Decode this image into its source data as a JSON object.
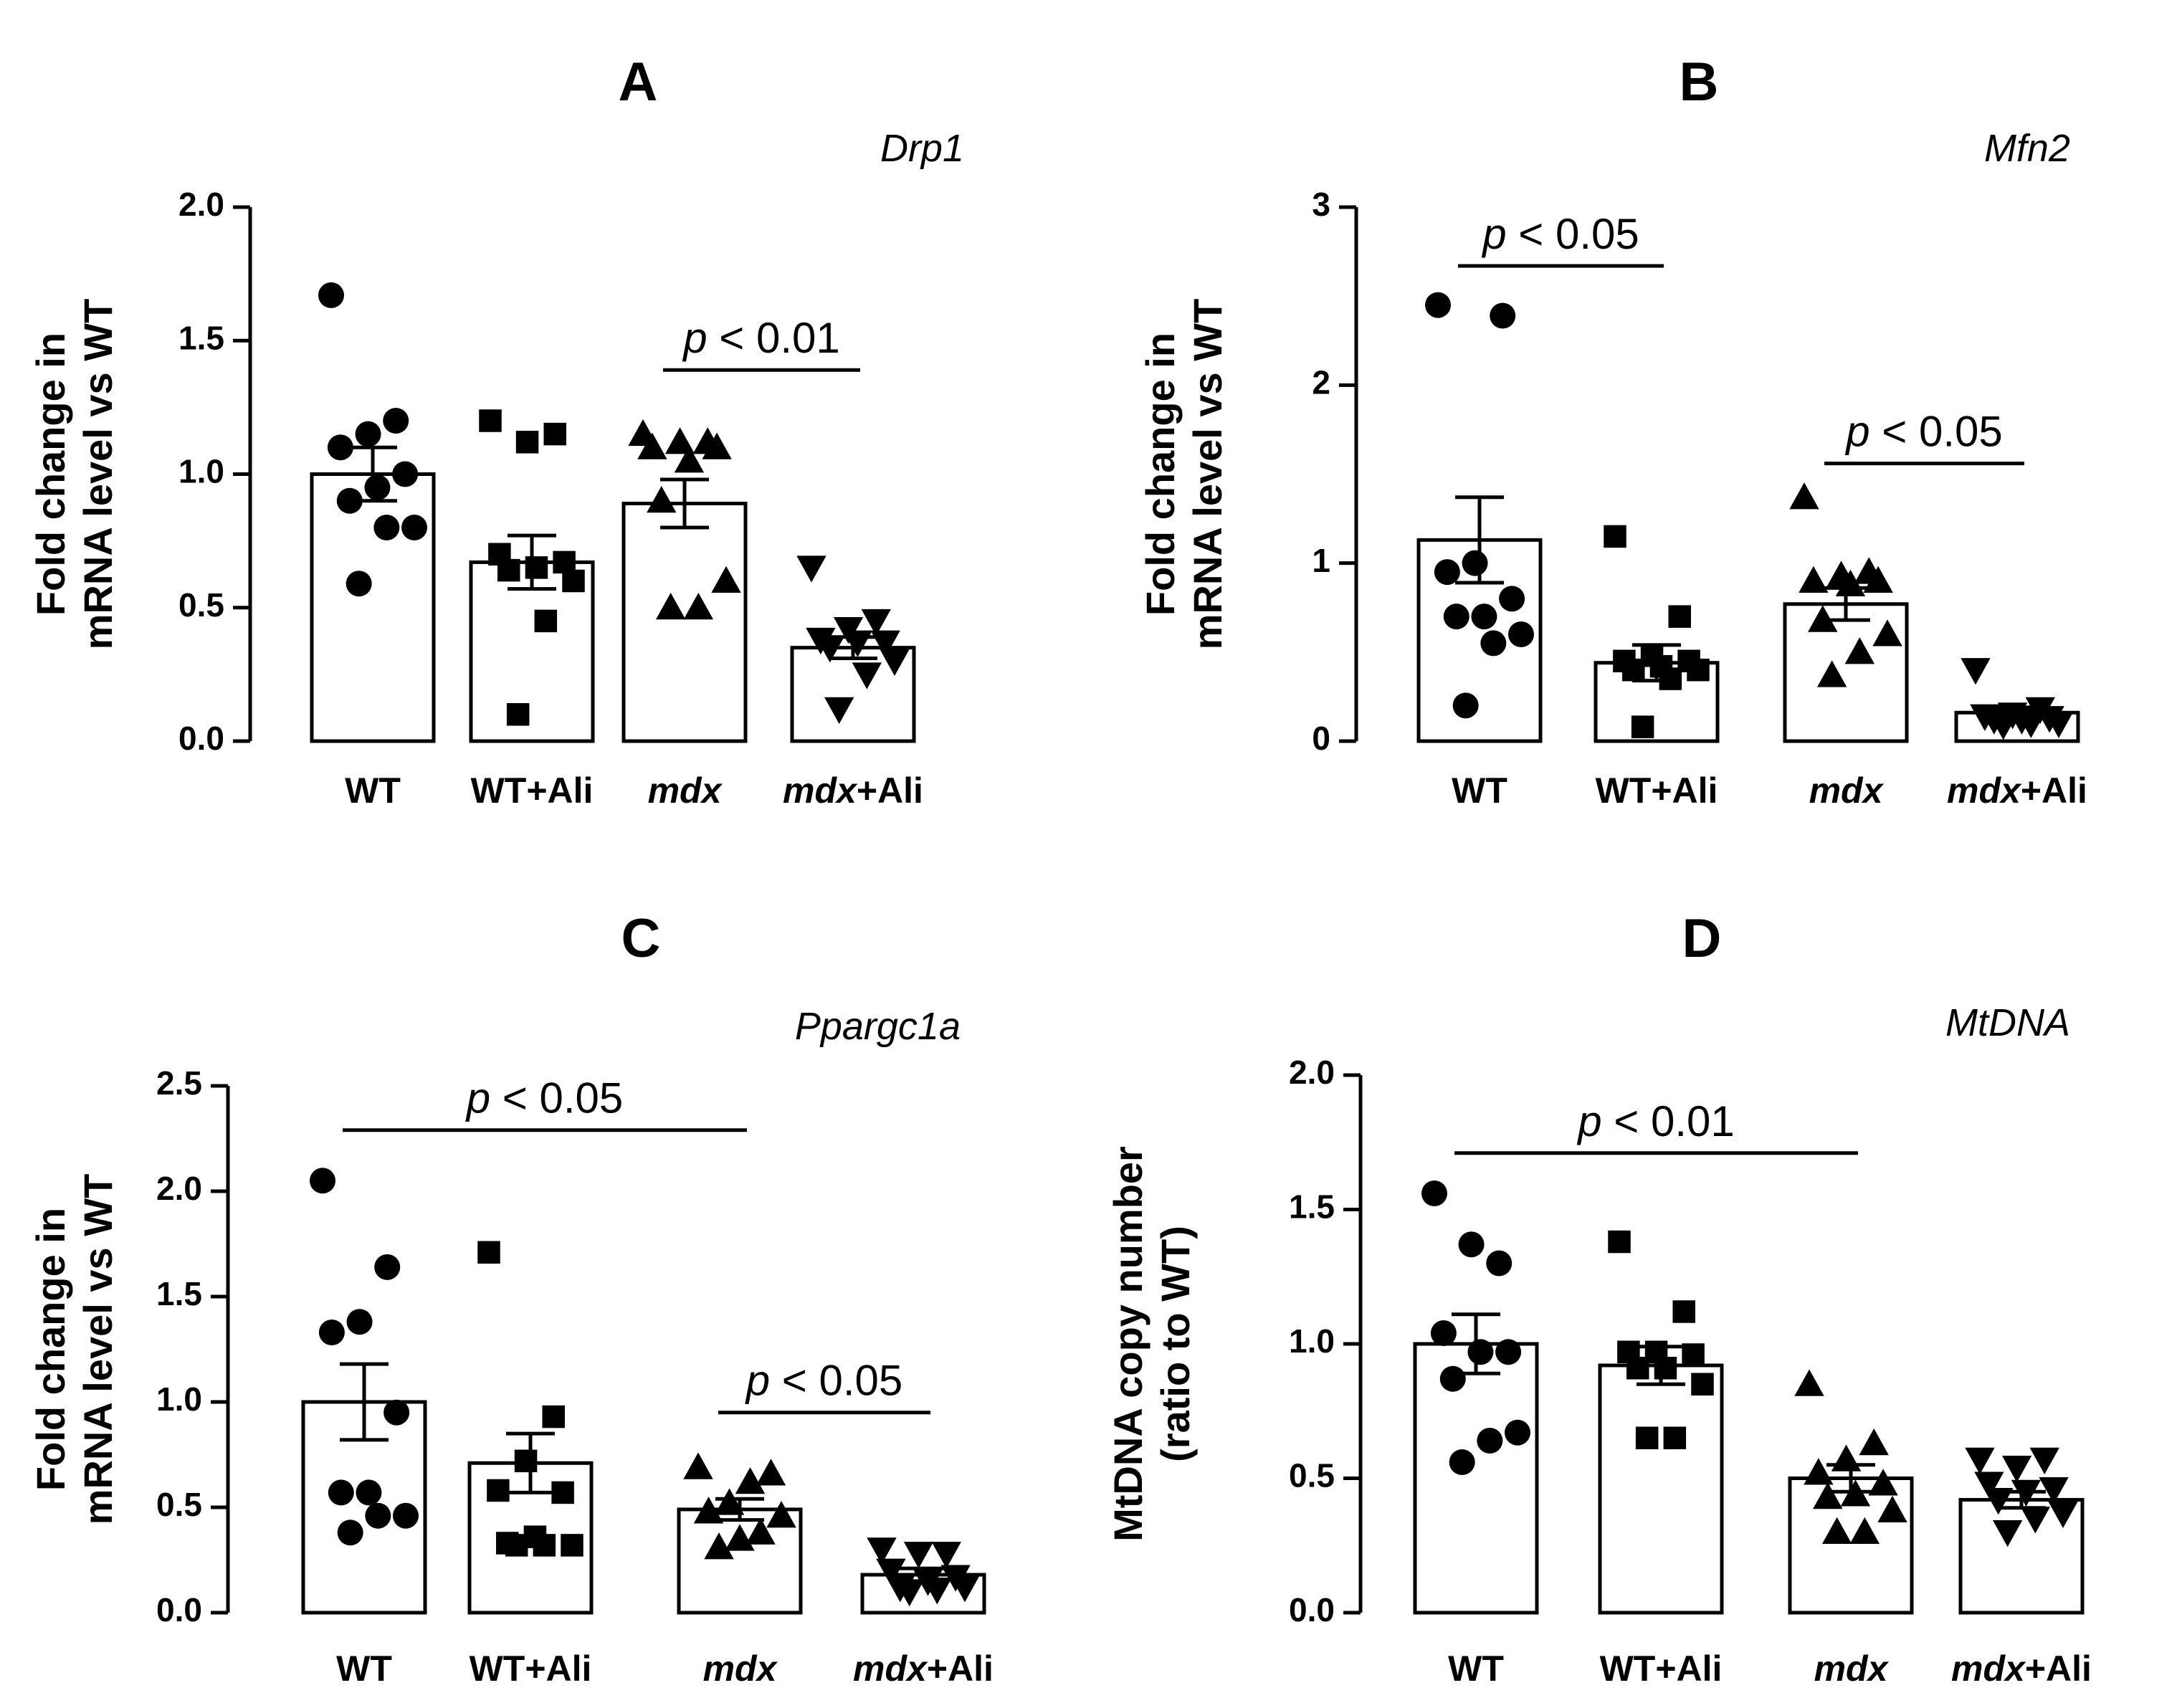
{
  "chart_data": [
    {
      "type": "bar",
      "panel": "A",
      "title": "Drp1",
      "ylabel_lines": [
        "Fold change in",
        "mRNA level vs WT"
      ],
      "ylim": [
        0,
        2.0
      ],
      "yticks": [
        "0.0",
        "0.5",
        "1.0",
        "1.5",
        "2.0"
      ],
      "ytick_values": [
        0,
        0.5,
        1.0,
        1.5,
        2.0
      ],
      "categories": [
        {
          "name": "WT",
          "italic_part": ""
        },
        {
          "name": "WT+Ali",
          "italic_part": ""
        },
        {
          "name": "+Ali",
          "italic_part": "mdx",
          "display": "mdx"
        },
        {
          "name": "+Ali",
          "italic_part": "mdx"
        }
      ],
      "category_labels": [
        "WT",
        "WT+Ali",
        "mdx",
        "mdx+Ali"
      ],
      "markers": [
        "circle",
        "square",
        "triangle-up",
        "triangle-down"
      ],
      "means": [
        1.0,
        0.67,
        0.89,
        0.35
      ],
      "sem": [
        0.1,
        0.1,
        0.09,
        0.04
      ],
      "points": [
        [
          1.67,
          1.2,
          1.15,
          1.1,
          1.0,
          0.95,
          0.9,
          0.8,
          0.8,
          0.59
        ],
        [
          1.2,
          1.15,
          1.12,
          0.7,
          0.67,
          0.65,
          0.64,
          0.6,
          0.45,
          0.1
        ],
        [
          1.15,
          1.12,
          1.12,
          1.1,
          1.1,
          1.05,
          0.9,
          0.6,
          0.5,
          0.5
        ],
        [
          0.65,
          0.45,
          0.42,
          0.38,
          0.37,
          0.37,
          0.35,
          0.3,
          0.25,
          0.12
        ]
      ],
      "sig": [
        {
          "from": 2,
          "to": 3,
          "y": 1.39,
          "p_symbol": "p",
          "p_rest": " < 0.01"
        }
      ]
    },
    {
      "type": "bar",
      "panel": "B",
      "title": "Mfn2",
      "ylabel_lines": [
        "Fold change in",
        "mRNA level vs WT"
      ],
      "ylim": [
        0,
        3
      ],
      "yticks": [
        "0",
        "1",
        "2",
        "3"
      ],
      "ytick_values": [
        0,
        1,
        2,
        3
      ],
      "category_labels": [
        "WT",
        "WT+Ali",
        "mdx",
        "mdx+Ali"
      ],
      "markers": [
        "circle",
        "square",
        "triangle-up",
        "triangle-down"
      ],
      "means": [
        1.13,
        0.44,
        0.77,
        0.16
      ],
      "sem": [
        0.24,
        0.1,
        0.09,
        0.03
      ],
      "points": [
        [
          2.45,
          2.39,
          1.0,
          0.95,
          0.8,
          0.7,
          0.7,
          0.6,
          0.55,
          0.2
        ],
        [
          1.15,
          0.7,
          0.48,
          0.45,
          0.45,
          0.42,
          0.4,
          0.4,
          0.35,
          0.08
        ],
        [
          1.37,
          0.95,
          0.93,
          0.9,
          0.9,
          0.88,
          0.68,
          0.6,
          0.5,
          0.37
        ],
        [
          0.4,
          0.18,
          0.15,
          0.14,
          0.13,
          0.12,
          0.12,
          0.1,
          0.1,
          0.09
        ]
      ],
      "sig": [
        {
          "from": 0,
          "to": 1,
          "y": 2.67,
          "p_symbol": "p",
          "p_rest": " < 0.05"
        },
        {
          "from": 2,
          "to": 3,
          "y": 1.56,
          "p_symbol": "p",
          "p_rest": " < 0.05"
        }
      ]
    },
    {
      "type": "bar",
      "panel": "C",
      "title": "Ppargc1a",
      "ylabel_lines": [
        "Fold change in",
        "mRNA level vs WT"
      ],
      "ylim": [
        0,
        2.5
      ],
      "yticks": [
        "0.0",
        "0.5",
        "1.0",
        "1.5",
        "2.0",
        "2.5"
      ],
      "ytick_values": [
        0,
        0.5,
        1.0,
        1.5,
        2.0,
        2.5
      ],
      "category_labels": [
        "WT",
        "WT+Ali",
        "mdx",
        "mdx+Ali"
      ],
      "markers": [
        "circle",
        "square",
        "triangle-up",
        "triangle-down"
      ],
      "means": [
        1.0,
        0.71,
        0.49,
        0.18
      ],
      "sem": [
        0.18,
        0.14,
        0.05,
        0.03
      ],
      "points": [
        [
          2.05,
          1.64,
          1.38,
          1.33,
          0.95,
          0.57,
          0.57,
          0.46,
          0.46,
          0.38
        ],
        [
          1.71,
          0.93,
          0.72,
          0.58,
          0.57,
          0.36,
          0.33,
          0.32,
          0.32,
          0.32
        ],
        [
          0.69,
          0.66,
          0.62,
          0.52,
          0.48,
          0.46,
          0.38,
          0.35,
          0.31
        ],
        [
          0.3,
          0.28,
          0.28,
          0.2,
          0.17,
          0.15,
          0.12,
          0.12,
          0.11,
          0.1
        ]
      ],
      "sig": [
        {
          "from": 0,
          "to": 2,
          "y": 2.29,
          "p_symbol": "p",
          "p_rest": " < 0.05"
        },
        {
          "from": 2,
          "to": 3,
          "y": 0.95,
          "p_symbol": "p",
          "p_rest": " < 0.05"
        }
      ]
    },
    {
      "type": "bar",
      "panel": "D",
      "title": "MtDNA",
      "ylabel_lines": [
        "MtDNA copy number",
        "(ratio to WT)"
      ],
      "ylim": [
        0,
        2.0
      ],
      "yticks": [
        "0.0",
        "0.5",
        "1.0",
        "1.5",
        "2.0"
      ],
      "ytick_values": [
        0,
        0.5,
        1.0,
        1.5,
        2.0
      ],
      "category_labels": [
        "WT",
        "WT+Ali",
        "mdx",
        "mdx+Ali"
      ],
      "markers": [
        "circle",
        "square",
        "triangle-up",
        "triangle-down"
      ],
      "means": [
        1.0,
        0.92,
        0.5,
        0.42
      ],
      "sem": [
        0.11,
        0.07,
        0.05,
        0.03
      ],
      "points": [
        [
          1.56,
          1.3,
          1.37,
          1.04,
          0.97,
          0.97,
          0.87,
          0.67,
          0.64,
          0.56
        ],
        [
          1.38,
          1.12,
          0.97,
          0.97,
          0.96,
          0.91,
          0.91,
          0.85,
          0.65,
          0.65
        ],
        [
          0.85,
          0.63,
          0.57,
          0.52,
          0.48,
          0.44,
          0.43,
          0.38,
          0.3,
          0.3
        ],
        [
          0.57,
          0.57,
          0.54,
          0.48,
          0.46,
          0.45,
          0.42,
          0.37,
          0.35,
          0.3
        ]
      ],
      "sig": [
        {
          "from": 0,
          "to": 2,
          "y": 1.71,
          "p_symbol": "p",
          "p_rest": " < 0.01"
        }
      ]
    }
  ]
}
